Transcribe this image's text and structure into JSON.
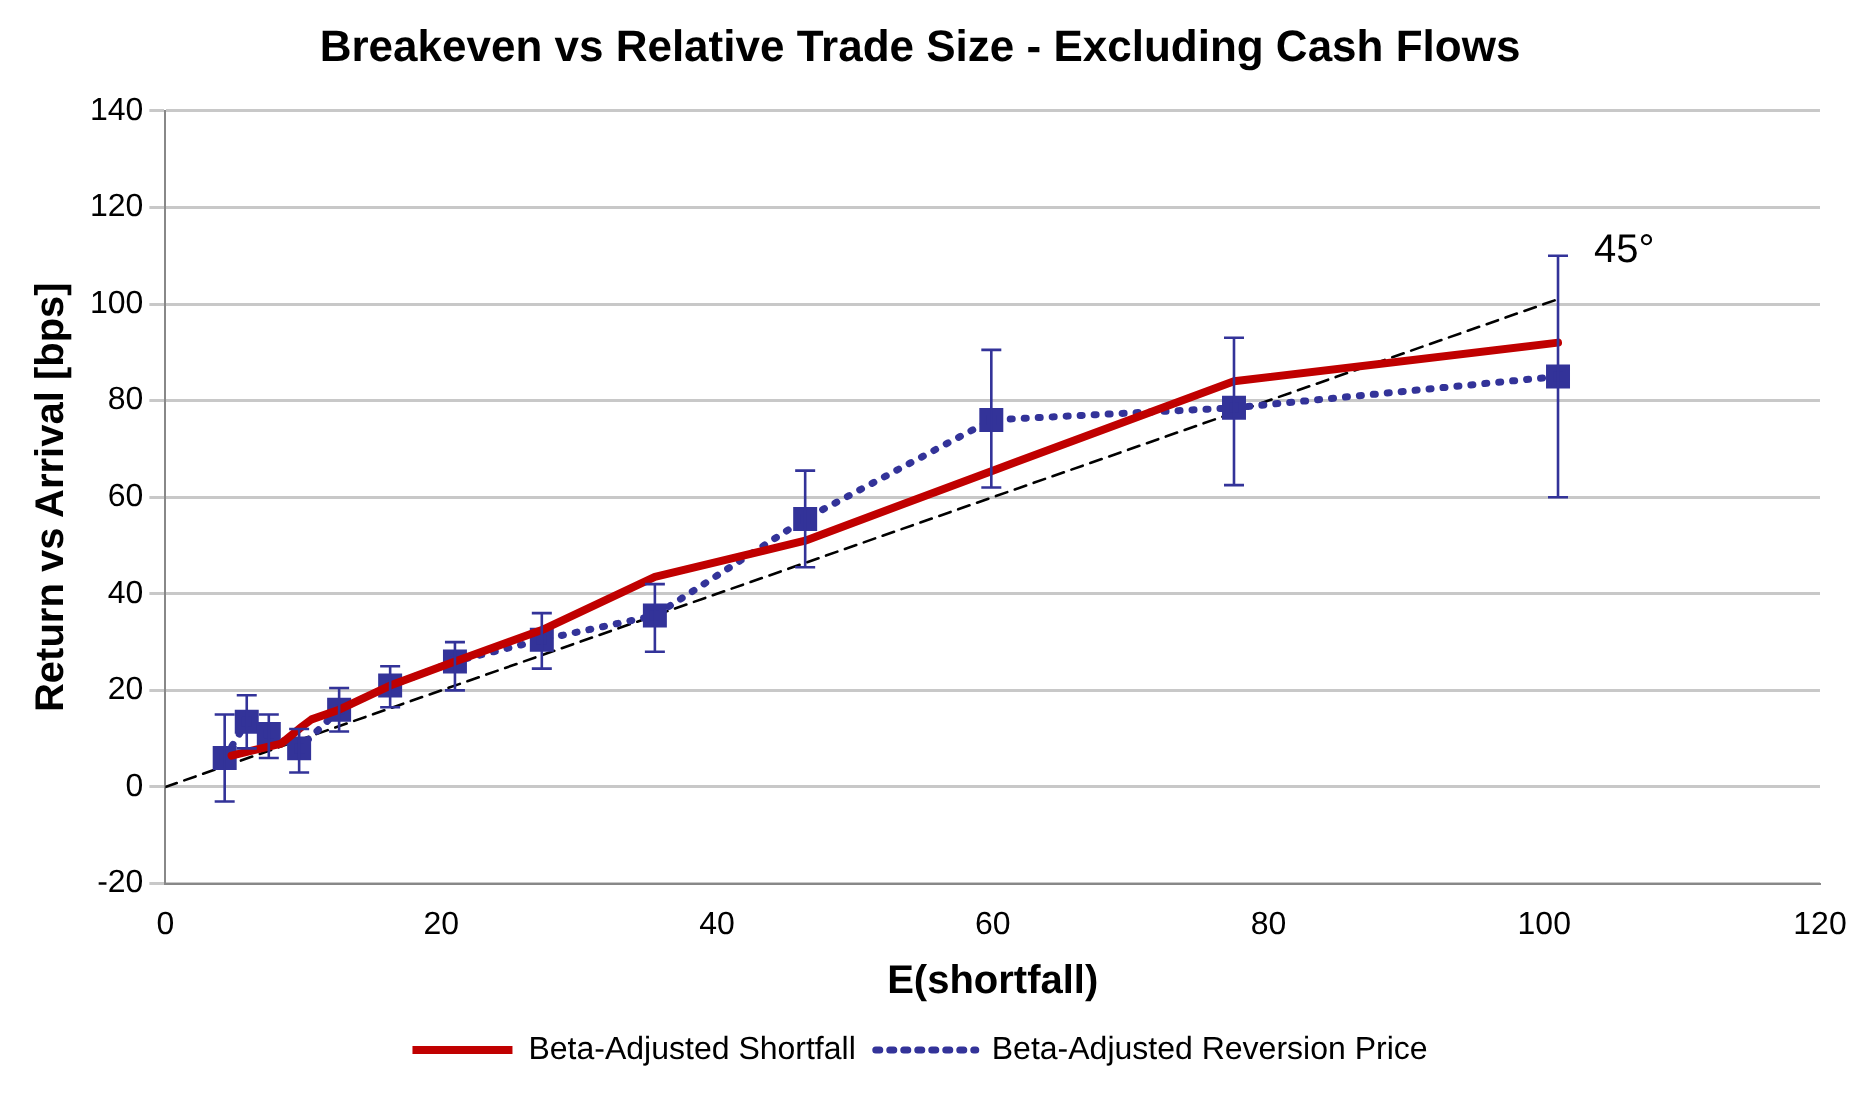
{
  "chart_data": {
    "type": "line",
    "title": "Breakeven vs Relative Trade Size - Excluding Cash Flows",
    "xlabel": "E(shortfall)",
    "ylabel": "Return vs Arrival [bps]",
    "xlim": [
      0,
      120
    ],
    "xticks": [
      0,
      20,
      40,
      60,
      80,
      100,
      120
    ],
    "ylim": [
      -20,
      140
    ],
    "yticks": [
      -20,
      0,
      20,
      40,
      60,
      80,
      100,
      120,
      140
    ],
    "grid": "y",
    "legend": "bottom",
    "annotations": [
      "45°"
    ],
    "series": [
      {
        "name": "Beta-Adjusted Shortfall",
        "color": "#c00000",
        "line_style": "solid",
        "marker": "none",
        "x": [
          4.8,
          8.4,
          9.9,
          10.6,
          12.6,
          16.3,
          21,
          27.3,
          35.5,
          46.4,
          60,
          77.5,
          101
        ],
        "values": [
          6.5,
          9,
          12.5,
          14,
          16,
          21,
          26,
          32.5,
          43.5,
          51,
          65.5,
          84,
          92
        ]
      },
      {
        "name": "Beta-Adjusted Reversion Price",
        "color": "#333399",
        "line_style": "dotted",
        "marker": "square",
        "x": [
          4.3,
          5.9,
          7.5,
          9.7,
          12.6,
          16.3,
          21,
          27.3,
          35.5,
          46.4,
          59.9,
          77.5,
          101
        ],
        "values": [
          6,
          13.5,
          11,
          8,
          16,
          21,
          26,
          30.5,
          35.5,
          55.5,
          76,
          78.5,
          85
        ],
        "errors": [
          [
            -3,
            15
          ],
          [
            8,
            19
          ],
          [
            6,
            15
          ],
          [
            3,
            12
          ],
          [
            11.5,
            20.5
          ],
          [
            16.5,
            25
          ],
          [
            20,
            30
          ],
          [
            24.5,
            36
          ],
          [
            28,
            42
          ],
          [
            45.5,
            65.5
          ],
          [
            62,
            90.5
          ],
          [
            62.5,
            93
          ],
          [
            60,
            110
          ]
        ]
      },
      {
        "color": "#000000",
        "line_style": "dashed",
        "marker": "none",
        "x": [
          0,
          101
        ],
        "values": [
          0,
          101
        ]
      }
    ]
  }
}
